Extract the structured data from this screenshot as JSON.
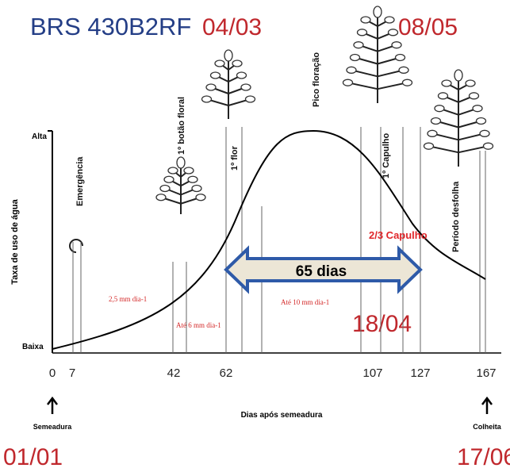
{
  "title": "BRS 430B2RF",
  "dates": {
    "flower": "04/03",
    "boll": "08/05",
    "mid": "18/04",
    "start": "01/01",
    "harvest": "17/06"
  },
  "y_axis": {
    "label": "Taxa de uso de água",
    "high": "Alta",
    "low": "Baixa"
  },
  "x_axis": {
    "label": "Dias após semeadura",
    "ticks": [
      "0",
      "7",
      "42",
      "62",
      "107",
      "127",
      "167"
    ],
    "start": "Semeadura",
    "end": "Colheita"
  },
  "stages": [
    "Emergência",
    "1º botão floral",
    "1º flor",
    "Pico floração",
    "1º Capulho",
    "Período desfolha"
  ],
  "annotations": {
    "two_thirds": "2/3 Capulho",
    "duration": "65 dias",
    "rate1": "2,5 mm dia-1",
    "rate2": "Até 6 mm dia-1",
    "rate3": "Até 10 mm dia-1"
  }
}
